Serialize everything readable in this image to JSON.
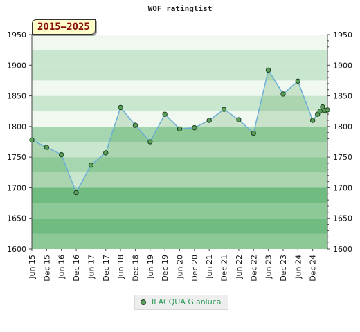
{
  "title": "WOF ratinglist",
  "range_label": "2015–2025",
  "chart_data": {
    "type": "line",
    "title": "WOF ratinglist",
    "x_tick_labels": [
      "Jun 15",
      "Dec 15",
      "Jun 16",
      "Dec 16",
      "Jun 17",
      "Dec 17",
      "Jun 18",
      "Dec 18",
      "Jun 19",
      "Dec 19",
      "Jun 20",
      "Dec 20",
      "Jun 21",
      "Dec 21",
      "Jun 22",
      "Dec 22",
      "Jun 23",
      "Dec 23",
      "Jun 24",
      "Dec 24"
    ],
    "ylim": [
      1600,
      1950
    ],
    "y_ticks": [
      1600,
      1650,
      1700,
      1750,
      1800,
      1850,
      1900,
      1950
    ],
    "grid": true,
    "legend_position": "bottom-center",
    "series": [
      {
        "name": "ILACQUA Gianluca",
        "color": "#6aaed6",
        "marker_color": "#5aa05a",
        "x": [
          0,
          1,
          2,
          3,
          4,
          5,
          6,
          7,
          8,
          9,
          10,
          11,
          12,
          13,
          14,
          15,
          16,
          17,
          18,
          19,
          19.33,
          19.5,
          19.67,
          19.83,
          20
        ],
        "values": [
          1778,
          1766,
          1754,
          1692,
          1737,
          1757,
          1831,
          1802,
          1775,
          1820,
          1796,
          1798,
          1810,
          1828,
          1811,
          1789,
          1892,
          1853,
          1874,
          1810,
          1820,
          1825,
          1832,
          1826,
          1827
        ]
      }
    ]
  },
  "legend": {
    "label": "ILACQUA Gianluca"
  },
  "colors": {
    "band_light": "#f0f8f0",
    "band_medium": "#c9e6cf",
    "band_mid": "#a5d6b0",
    "band_dark": "#7fc593",
    "area_fill": "#3a9a3e",
    "line": "#6aaed6",
    "marker": "#5aa05a"
  }
}
